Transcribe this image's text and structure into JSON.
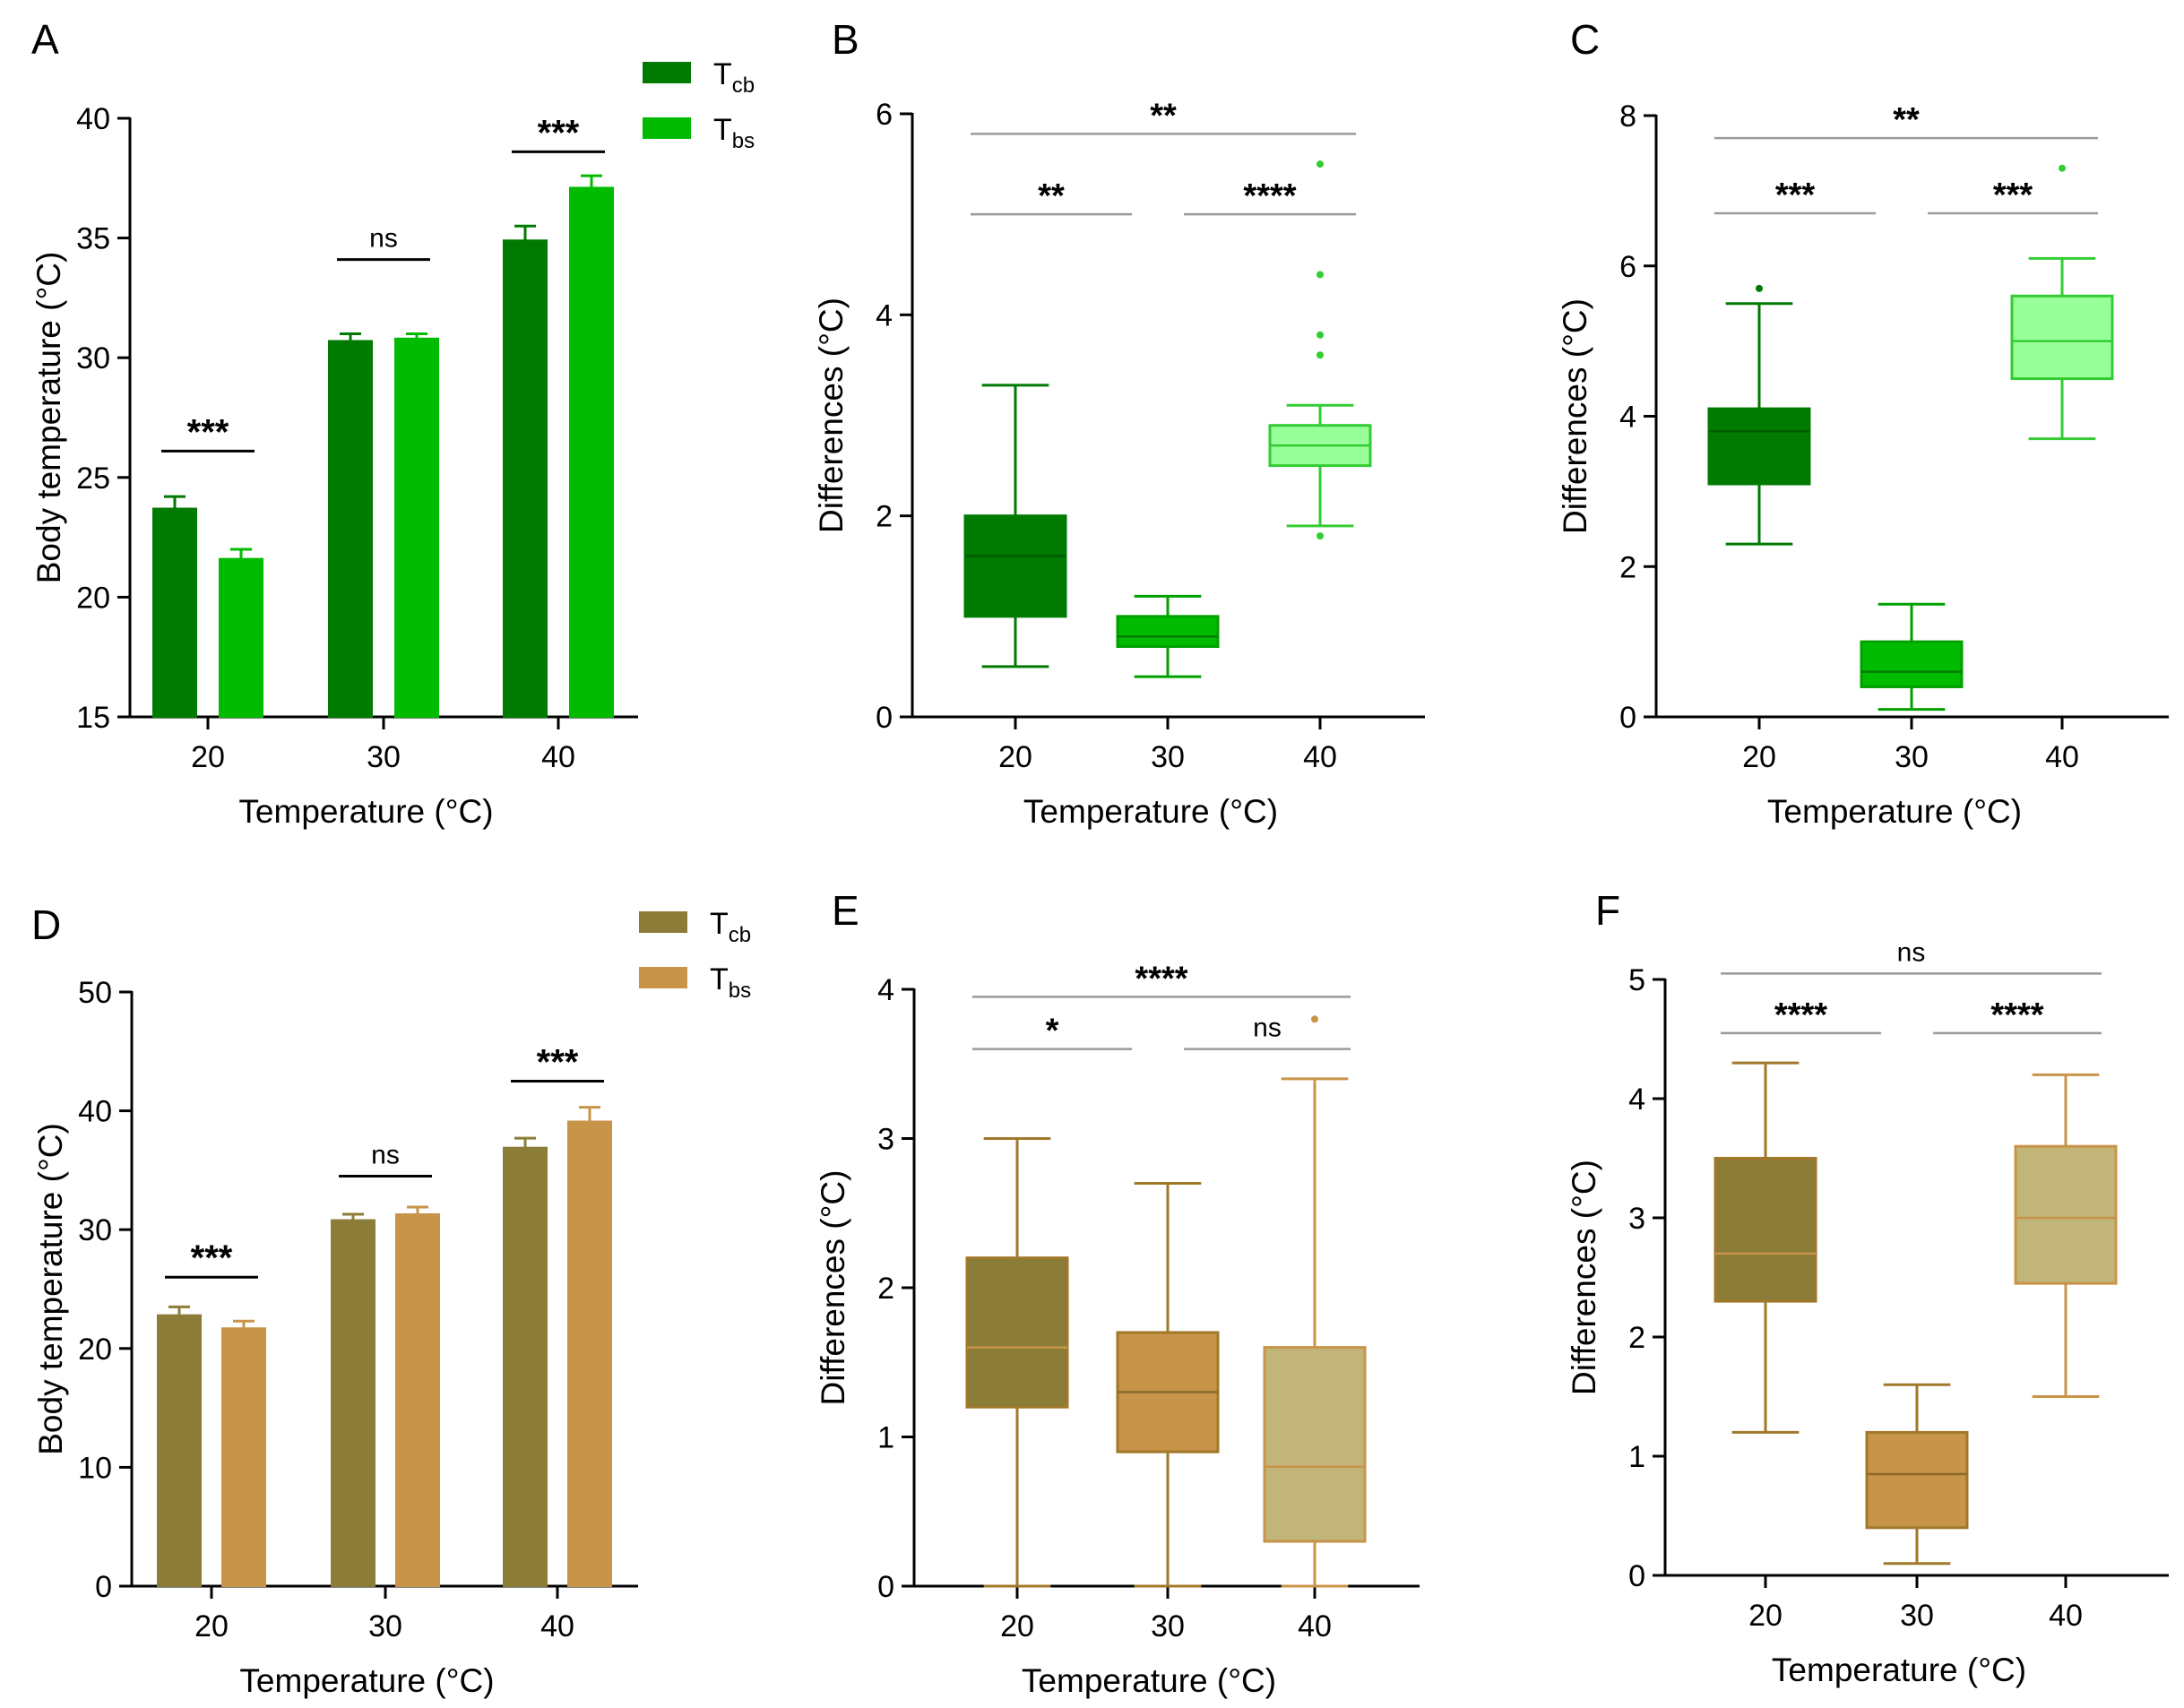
{
  "colors": {
    "green_dark": "#007a00",
    "green_mid": "#00bb00",
    "green_light": "#99ff99",
    "green_light_stroke": "#33cc33",
    "olive": "#8b7c37",
    "tan": "#c8944a",
    "khaki": "#c1b57a",
    "brown_stroke": "#a0782a"
  },
  "chart_data": [
    {
      "panel": "A",
      "type": "bar",
      "categories": [
        "20",
        "30",
        "40"
      ],
      "series": [
        {
          "name": "Tcb",
          "label_main": "T",
          "label_sub": "cb",
          "values": [
            23.7,
            30.7,
            34.9
          ],
          "errors": [
            0.5,
            0.3,
            0.6
          ],
          "color": "#007a00"
        },
        {
          "name": "Tbs",
          "label_main": "T",
          "label_sub": "bs",
          "values": [
            21.6,
            30.8,
            37.1
          ],
          "errors": [
            0.4,
            0.2,
            0.5
          ],
          "color": "#00bb00"
        }
      ],
      "ylim": [
        15,
        40
      ],
      "yticks": [
        "15",
        "20",
        "25",
        "30",
        "35",
        "40"
      ],
      "xlabel": "Temperature (°C)",
      "ylabel": "Body temperature (°C)",
      "significance": [
        {
          "group": 0,
          "text": "***",
          "y": 26.1
        },
        {
          "group": 1,
          "text": "ns",
          "y": 34.1
        },
        {
          "group": 2,
          "text": "***",
          "y": 38.6
        }
      ]
    },
    {
      "panel": "B",
      "type": "box",
      "categories": [
        "20",
        "30",
        "40"
      ],
      "ylim": [
        0,
        6
      ],
      "yticks": [
        "0",
        "2",
        "4",
        "6"
      ],
      "xlabel": "Temperature (°C)",
      "ylabel": "Differences (°C)",
      "boxes": [
        {
          "min": 0.5,
          "q1": 1.0,
          "median": 1.6,
          "q3": 2.0,
          "max": 3.3,
          "outliers": [],
          "fill": "#007a00",
          "stroke": "#007a00",
          "median_color": "#005a00"
        },
        {
          "min": 0.4,
          "q1": 0.7,
          "median": 0.8,
          "q3": 1.0,
          "max": 1.2,
          "outliers": [],
          "fill": "#00bb00",
          "stroke": "#00a000",
          "median_color": "#007a00"
        },
        {
          "min": 1.9,
          "q1": 2.5,
          "median": 2.7,
          "q3": 2.9,
          "max": 3.1,
          "outliers": [
            5.5,
            4.4,
            3.8,
            3.6,
            1.8
          ],
          "fill": "#99ff99",
          "stroke": "#33cc33",
          "median_color": "#33cc33"
        }
      ],
      "brackets": [
        {
          "from": 0,
          "to": 2,
          "text": "**",
          "y": 5.8
        },
        {
          "from": 0,
          "to": 1,
          "text": "**",
          "y": 5.0
        },
        {
          "from": 1,
          "to": 2,
          "text": "****",
          "y": 5.0
        }
      ]
    },
    {
      "panel": "C",
      "type": "box",
      "categories": [
        "20",
        "30",
        "40"
      ],
      "ylim": [
        0,
        8
      ],
      "yticks": [
        "0",
        "2",
        "4",
        "6",
        "8"
      ],
      "xlabel": "Temperature (°C)",
      "ylabel": "Differences (°C)",
      "boxes": [
        {
          "min": 2.3,
          "q1": 3.1,
          "median": 3.8,
          "q3": 4.1,
          "max": 5.5,
          "outliers": [
            5.7
          ],
          "fill": "#007a00",
          "stroke": "#007a00",
          "median_color": "#005a00"
        },
        {
          "min": 0.1,
          "q1": 0.4,
          "median": 0.6,
          "q3": 1.0,
          "max": 1.5,
          "outliers": [],
          "fill": "#00bb00",
          "stroke": "#00a000",
          "median_color": "#007a00"
        },
        {
          "min": 3.7,
          "q1": 4.5,
          "median": 5.0,
          "q3": 5.6,
          "max": 6.1,
          "outliers": [
            7.3
          ],
          "fill": "#99ff99",
          "stroke": "#33cc33",
          "median_color": "#33cc33"
        }
      ],
      "brackets": [
        {
          "from": 0,
          "to": 2,
          "text": "**",
          "y": 7.7
        },
        {
          "from": 0,
          "to": 1,
          "text": "***",
          "y": 6.7
        },
        {
          "from": 1,
          "to": 2,
          "text": "***",
          "y": 6.7
        }
      ]
    },
    {
      "panel": "D",
      "type": "bar",
      "categories": [
        "20",
        "30",
        "40"
      ],
      "series": [
        {
          "name": "Tcb",
          "label_main": "T",
          "label_sub": "cb",
          "values": [
            22.8,
            30.8,
            36.9
          ],
          "errors": [
            0.7,
            0.5,
            0.8
          ],
          "color": "#8b7c37"
        },
        {
          "name": "Tbs",
          "label_main": "T",
          "label_sub": "bs",
          "values": [
            21.7,
            31.3,
            39.1
          ],
          "errors": [
            0.6,
            0.6,
            1.2
          ],
          "color": "#c8944a"
        }
      ],
      "ylim": [
        0,
        50
      ],
      "yticks": [
        "0",
        "10",
        "20",
        "30",
        "40",
        "50"
      ],
      "xlabel": "Temperature (°C)",
      "ylabel": "Body temperature (°C)",
      "significance": [
        {
          "group": 0,
          "text": "***",
          "y": 26.0
        },
        {
          "group": 1,
          "text": "ns",
          "y": 34.5
        },
        {
          "group": 2,
          "text": "***",
          "y": 42.5
        }
      ]
    },
    {
      "panel": "E",
      "type": "box",
      "categories": [
        "20",
        "30",
        "40"
      ],
      "ylim": [
        0,
        4
      ],
      "yticks": [
        "0",
        "1",
        "2",
        "3",
        "4"
      ],
      "xlabel": "Temperature (°C)",
      "ylabel": "Differences (°C)",
      "boxes": [
        {
          "min": 0.0,
          "q1": 1.2,
          "median": 1.6,
          "q3": 2.2,
          "max": 3.0,
          "outliers": [],
          "fill": "#8b7c37",
          "stroke": "#a0782a",
          "median_color": "#c8944a"
        },
        {
          "min": 0.0,
          "q1": 0.9,
          "median": 1.3,
          "q3": 1.7,
          "max": 2.7,
          "outliers": [],
          "fill": "#c8944a",
          "stroke": "#a0782a",
          "median_color": "#8b6a2a"
        },
        {
          "min": 0.0,
          "q1": 0.3,
          "median": 0.8,
          "q3": 1.6,
          "max": 3.4,
          "outliers": [
            3.8
          ],
          "fill": "#c1b57a",
          "stroke": "#c8944a",
          "median_color": "#c8944a"
        }
      ],
      "brackets": [
        {
          "from": 0,
          "to": 2,
          "text": "****",
          "y": 3.95
        },
        {
          "from": 0,
          "to": 1,
          "text": "*",
          "y": 3.6
        },
        {
          "from": 1,
          "to": 2,
          "text": "ns",
          "y": 3.6
        }
      ]
    },
    {
      "panel": "F",
      "type": "box",
      "categories": [
        "20",
        "30",
        "40"
      ],
      "ylim": [
        0,
        5
      ],
      "yticks": [
        "0",
        "1",
        "2",
        "3",
        "4",
        "5"
      ],
      "xlabel": "Temperature (°C)",
      "ylabel": "Differences (°C)",
      "boxes": [
        {
          "min": 1.2,
          "q1": 2.3,
          "median": 2.7,
          "q3": 3.5,
          "max": 4.3,
          "outliers": [],
          "fill": "#8b7c37",
          "stroke": "#a0782a",
          "median_color": "#c8944a"
        },
        {
          "min": 0.1,
          "q1": 0.4,
          "median": 0.85,
          "q3": 1.2,
          "max": 1.6,
          "outliers": [],
          "fill": "#c8944a",
          "stroke": "#a0782a",
          "median_color": "#8b6a2a"
        },
        {
          "min": 1.5,
          "q1": 2.45,
          "median": 3.0,
          "q3": 3.6,
          "max": 4.2,
          "outliers": [],
          "fill": "#c1b57a",
          "stroke": "#c8944a",
          "median_color": "#c8944a"
        }
      ],
      "brackets": [
        {
          "from": 0,
          "to": 2,
          "text": "ns",
          "y": 5.05
        },
        {
          "from": 0,
          "to": 1,
          "text": "****",
          "y": 4.55
        },
        {
          "from": 1,
          "to": 2,
          "text": "****",
          "y": 4.55
        }
      ]
    }
  ]
}
